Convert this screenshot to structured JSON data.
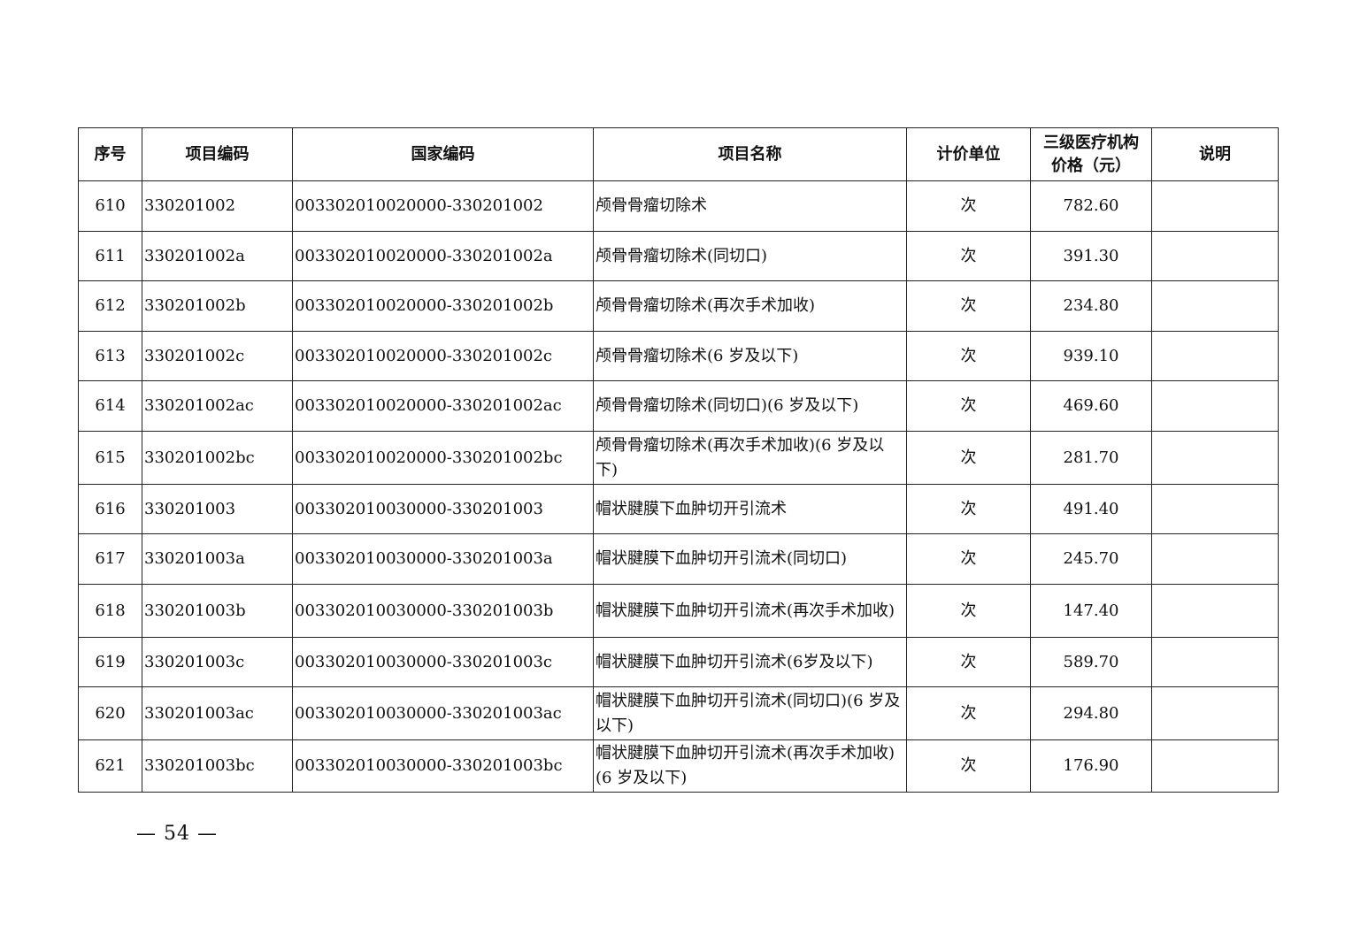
{
  "table": {
    "headers": [
      "序号",
      "项目编码",
      "国家编码",
      "项目名称",
      "计价单位",
      "三级医疗机构价格（元）",
      "说明"
    ],
    "rows": [
      {
        "no": "610",
        "code": "330201002",
        "national": "003302010020000-330201002",
        "name": "颅骨骨瘤切除术",
        "unit": "次",
        "price": "782.60",
        "note": ""
      },
      {
        "no": "611",
        "code": "330201002a",
        "national": "003302010020000-330201002a",
        "name": "颅骨骨瘤切除术(同切口)",
        "unit": "次",
        "price": "391.30",
        "note": ""
      },
      {
        "no": "612",
        "code": "330201002b",
        "national": "003302010020000-330201002b",
        "name": "颅骨骨瘤切除术(再次手术加收)",
        "unit": "次",
        "price": "234.80",
        "note": ""
      },
      {
        "no": "613",
        "code": "330201002c",
        "national": "003302010020000-330201002c",
        "name": "颅骨骨瘤切除术(6 岁及以下)",
        "unit": "次",
        "price": "939.10",
        "note": ""
      },
      {
        "no": "614",
        "code": "330201002ac",
        "national": "003302010020000-330201002ac",
        "name": "颅骨骨瘤切除术(同切口)(6 岁及以下)",
        "unit": "次",
        "price": "469.60",
        "note": ""
      },
      {
        "no": "615",
        "code": "330201002bc",
        "national": "003302010020000-330201002bc",
        "name": "颅骨骨瘤切除术(再次手术加收)(6 岁及以下)",
        "unit": "次",
        "price": "281.70",
        "note": ""
      },
      {
        "no": "616",
        "code": "330201003",
        "national": "003302010030000-330201003",
        "name": "帽状腱膜下血肿切开引流术",
        "unit": "次",
        "price": "491.40",
        "note": ""
      },
      {
        "no": "617",
        "code": "330201003a",
        "national": "003302010030000-330201003a",
        "name": "帽状腱膜下血肿切开引流术(同切口)",
        "unit": "次",
        "price": "245.70",
        "note": ""
      },
      {
        "no": "618",
        "code": "330201003b",
        "national": "003302010030000-330201003b",
        "name": "帽状腱膜下血肿切开引流术(再次手术加收)",
        "unit": "次",
        "price": "147.40",
        "note": ""
      },
      {
        "no": "619",
        "code": "330201003c",
        "national": "003302010030000-330201003c",
        "name": "帽状腱膜下血肿切开引流术(6岁及以下)",
        "unit": "次",
        "price": "589.70",
        "note": ""
      },
      {
        "no": "620",
        "code": "330201003ac",
        "national": "003302010030000-330201003ac",
        "name": "帽状腱膜下血肿切开引流术(同切口)(6 岁及以下)",
        "unit": "次",
        "price": "294.80",
        "note": ""
      },
      {
        "no": "621",
        "code": "330201003bc",
        "national": "003302010030000-330201003bc",
        "name": "帽状腱膜下血肿切开引流术(再次手术加收)(6 岁及以下)",
        "unit": "次",
        "price": "176.90",
        "note": ""
      }
    ]
  },
  "footer": {
    "page_number": "— 54 —"
  }
}
